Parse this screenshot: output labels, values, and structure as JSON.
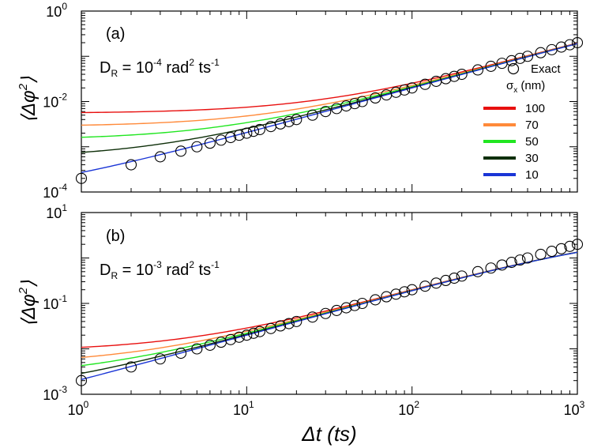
{
  "chart_data": [
    {
      "type": "line",
      "panel_label": "(a)",
      "annotation": {
        "base": "D",
        "sub": "R",
        "eq": " = 10",
        "exp1": "-4",
        "unit": " rad",
        "exp2": "2",
        "tail": " ts",
        "exp3": "-1"
      },
      "x_scale": "log",
      "y_scale": "log",
      "xlim": [
        1,
        1000
      ],
      "ylim": [
        0.0001,
        1
      ],
      "y_ticks": [
        {
          "base": "10",
          "exp": "-4",
          "v": 0.0001
        },
        {
          "base": "10",
          "exp": "-2",
          "v": 0.01
        },
        {
          "base": "10",
          "exp": "0",
          "v": 1
        }
      ],
      "ylabel": {
        "open": "⟨",
        "var": "Δφ",
        "exp": "2",
        "close": "⟩"
      },
      "legend": {
        "exact_label": "Exact",
        "title_base": "σ",
        "title_sub": "x",
        "title_unit": " (nm)",
        "position": "right"
      },
      "series": [
        {
          "name": "100",
          "color": "#e8100f",
          "D": 0.0001,
          "noise": 0.0055
        },
        {
          "name": "70",
          "color": "#ff8a3a",
          "D": 0.0001,
          "noise": 0.0028
        },
        {
          "name": "50",
          "color": "#21e621",
          "D": 0.0001,
          "noise": 0.00142
        },
        {
          "name": "30",
          "color": "#0e2f09",
          "D": 0.0001,
          "noise": 0.00055
        },
        {
          "name": "10",
          "color": "#1a35d6",
          "D": 0.0001,
          "noise": 7e-05
        }
      ],
      "exact": {
        "x": [
          1,
          2,
          3,
          4,
          5,
          6,
          7,
          8,
          9,
          10,
          11,
          12,
          14,
          16,
          18,
          20,
          25,
          30,
          35,
          40,
          45,
          50,
          60,
          70,
          80,
          90,
          100,
          120,
          140,
          160,
          180,
          200,
          250,
          300,
          350,
          400,
          450,
          500,
          600,
          700,
          800,
          900,
          1000
        ],
        "y": [
          0.0002,
          0.0004,
          0.0006,
          0.0008,
          0.001,
          0.0012,
          0.0014,
          0.0016,
          0.0018,
          0.002,
          0.0022,
          0.0024,
          0.0028,
          0.0032,
          0.0036,
          0.004,
          0.005,
          0.006,
          0.007,
          0.008,
          0.009,
          0.01,
          0.012,
          0.014,
          0.016,
          0.018,
          0.02,
          0.024,
          0.028,
          0.032,
          0.036,
          0.04,
          0.05,
          0.06,
          0.07,
          0.08,
          0.09,
          0.1,
          0.12,
          0.14,
          0.16,
          0.18,
          0.2
        ]
      }
    },
    {
      "type": "line",
      "panel_label": "(b)",
      "annotation": {
        "base": "D",
        "sub": "R",
        "eq": " = 10",
        "exp1": "-3",
        "unit": " rad",
        "exp2": "2",
        "tail": " ts",
        "exp3": "-1"
      },
      "x_scale": "log",
      "y_scale": "log",
      "xlim": [
        1,
        1000
      ],
      "ylim": [
        0.001,
        10
      ],
      "x_ticks": [
        {
          "base": "10",
          "exp": "0",
          "v": 1
        },
        {
          "base": "10",
          "exp": "1",
          "v": 10
        },
        {
          "base": "10",
          "exp": "2",
          "v": 100
        },
        {
          "base": "10",
          "exp": "3",
          "v": 1000
        }
      ],
      "y_ticks": [
        {
          "base": "10",
          "exp": "-3",
          "v": 0.001
        },
        {
          "base": "10",
          "exp": "-1",
          "v": 0.1
        },
        {
          "base": "10",
          "exp": "1",
          "v": 10
        }
      ],
      "xlabel": {
        "var": "Δt",
        "unit": " (ts)"
      },
      "ylabel": {
        "open": "⟨",
        "var": "Δφ",
        "exp": "2",
        "close": "⟩"
      },
      "series": [
        {
          "name": "100",
          "color": "#e8100f",
          "D": 0.001,
          "noise": 0.0055
        },
        {
          "name": "70",
          "color": "#ff8a3a",
          "D": 0.001,
          "noise": 0.0028
        },
        {
          "name": "50",
          "color": "#21e621",
          "D": 0.001,
          "noise": 0.00142
        },
        {
          "name": "30",
          "color": "#0e2f09",
          "D": 0.001,
          "noise": 0.00055
        },
        {
          "name": "10",
          "color": "#1a35d6",
          "D": 0.001,
          "noise": 7e-05
        }
      ],
      "exact": {
        "x": [
          1,
          2,
          3,
          4,
          5,
          6,
          7,
          8,
          9,
          10,
          11,
          12,
          14,
          16,
          18,
          20,
          25,
          30,
          35,
          40,
          45,
          50,
          60,
          70,
          80,
          90,
          100,
          120,
          140,
          160,
          180,
          200,
          250,
          300,
          350,
          400,
          450,
          500,
          600,
          700,
          800,
          900,
          1000
        ],
        "y": [
          0.002,
          0.004,
          0.006,
          0.008,
          0.01,
          0.012,
          0.014,
          0.016,
          0.018,
          0.02,
          0.022,
          0.024,
          0.028,
          0.032,
          0.036,
          0.04,
          0.05,
          0.06,
          0.07,
          0.08,
          0.09,
          0.1,
          0.12,
          0.14,
          0.16,
          0.18,
          0.2,
          0.24,
          0.28,
          0.32,
          0.36,
          0.4,
          0.5,
          0.6,
          0.7,
          0.8,
          0.9,
          1.0,
          1.2,
          1.4,
          1.6,
          1.8,
          2.0
        ]
      }
    }
  ]
}
